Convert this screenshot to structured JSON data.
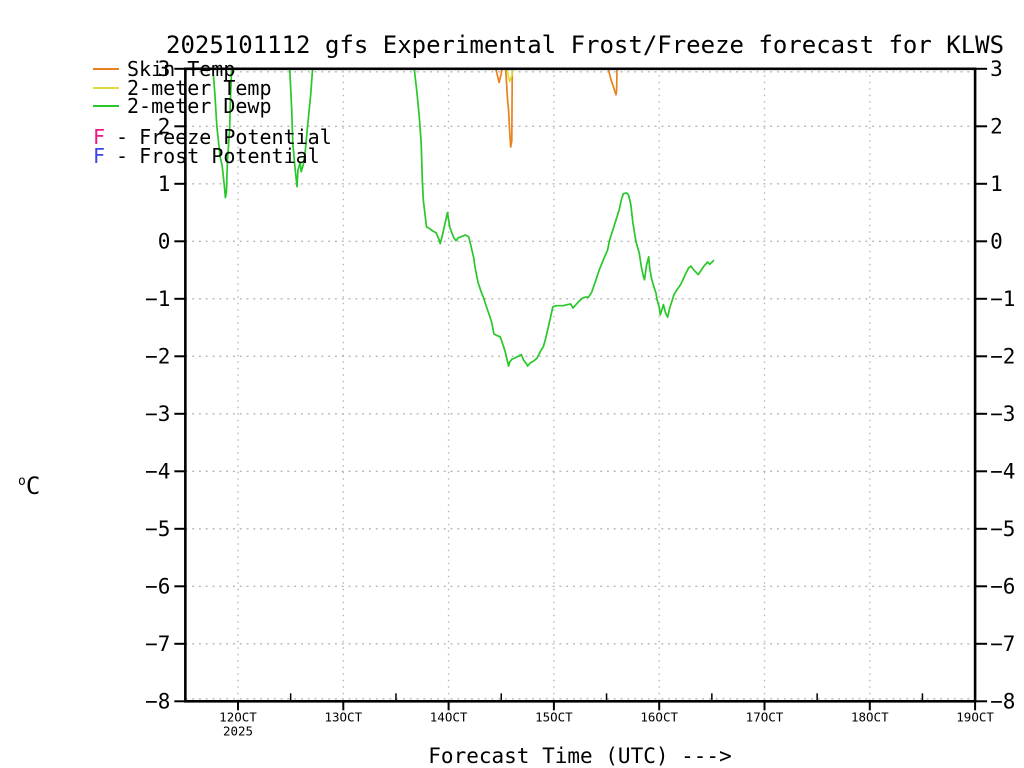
{
  "chart_data": {
    "type": "line",
    "title": "2025101112 gfs Experimental Frost/Freeze forecast for KLWS",
    "xlabel": "Forecast Time (UTC) --->",
    "ylabel": {
      "sup": "o",
      "main": "C"
    },
    "x_axis": {
      "unit": "day_of_october_2025_utc",
      "min_day": 11.5,
      "max_day": 19.0,
      "tick_days": [
        12,
        13,
        14,
        15,
        16,
        17,
        18,
        19
      ],
      "tick_labels": [
        "12OCT",
        "13OCT",
        "14OCT",
        "15OCT",
        "16OCT",
        "17OCT",
        "18OCT",
        "19OCT"
      ],
      "year_label": "2025",
      "minor_tick_days": [
        12.5,
        13.5,
        14.5,
        15.5,
        16.5,
        17.5,
        18.5
      ]
    },
    "y_axis": {
      "unit": "degC",
      "min": -8,
      "max": 3,
      "tick_values": [
        3,
        2,
        1,
        0,
        -1,
        -2,
        -3,
        -4,
        -5,
        -6,
        -7,
        -8
      ],
      "tick_labels": [
        "3",
        "2",
        "1",
        "0",
        "−1",
        "−2",
        "−3",
        "−4",
        "−5",
        "−6",
        "−7",
        "−8"
      ]
    },
    "grid": {
      "show": true,
      "color": "#b8b8b8"
    },
    "legend_position": "top-left",
    "series": [
      {
        "name": "Skin Temp",
        "color": "#E8821E",
        "segments": [
          [
            [
              14.44,
              3.05
            ],
            [
              14.46,
              2.92
            ],
            [
              14.48,
              2.76
            ],
            [
              14.5,
              2.92
            ],
            [
              14.51,
              3.05
            ]
          ],
          [
            [
              14.54,
              3.05
            ],
            [
              14.56,
              2.45
            ],
            [
              14.57,
              2.28
            ],
            [
              14.58,
              1.9
            ],
            [
              14.59,
              1.64
            ],
            [
              14.6,
              1.75
            ],
            [
              14.605,
              3.05
            ]
          ],
          [
            [
              15.51,
              3.05
            ],
            [
              15.54,
              2.82
            ],
            [
              15.57,
              2.66
            ],
            [
              15.59,
              2.55
            ],
            [
              15.595,
              2.62
            ],
            [
              15.6,
              3.05
            ]
          ]
        ]
      },
      {
        "name": "2-meter Temp",
        "color": "#DCDC3C",
        "segments": [
          [
            [
              14.55,
              3.05
            ],
            [
              14.57,
              2.85
            ],
            [
              14.58,
              2.78
            ],
            [
              14.6,
              2.88
            ],
            [
              14.61,
              3.05
            ]
          ]
        ]
      },
      {
        "name": "2-meter Dewp",
        "color": "#28C828",
        "segments": [
          [
            [
              11.76,
              3.05
            ],
            [
              11.78,
              2.58
            ],
            [
              11.8,
              1.99
            ],
            [
              11.83,
              1.47
            ],
            [
              11.85,
              1.31
            ],
            [
              11.87,
              0.97
            ],
            [
              11.88,
              0.76
            ],
            [
              11.89,
              0.86
            ],
            [
              11.9,
              1.42
            ],
            [
              11.92,
              1.94
            ],
            [
              11.93,
              2.55
            ],
            [
              11.94,
              3.05
            ]
          ],
          [
            [
              12.49,
              3.05
            ],
            [
              12.51,
              2.29
            ],
            [
              12.52,
              1.71
            ],
            [
              12.54,
              1.3
            ],
            [
              12.56,
              0.95
            ],
            [
              12.57,
              1.24
            ],
            [
              12.59,
              1.37
            ],
            [
              12.6,
              1.21
            ],
            [
              12.62,
              1.33
            ],
            [
              12.64,
              1.59
            ],
            [
              12.66,
              1.99
            ],
            [
              12.69,
              2.55
            ],
            [
              12.71,
              3.05
            ]
          ],
          [
            [
              13.67,
              3.05
            ],
            [
              13.7,
              2.58
            ],
            [
              13.72,
              2.2
            ],
            [
              13.74,
              1.71
            ],
            [
              13.75,
              1.07
            ],
            [
              13.76,
              0.72
            ],
            [
              13.78,
              0.41
            ],
            [
              13.79,
              0.25
            ],
            [
              13.82,
              0.22
            ],
            [
              13.85,
              0.18
            ],
            [
              13.88,
              0.15
            ],
            [
              13.91,
              0.03
            ],
            [
              13.92,
              -0.04
            ],
            [
              13.94,
              0.1
            ],
            [
              13.97,
              0.34
            ],
            [
              13.99,
              0.5
            ],
            [
              14.01,
              0.25
            ],
            [
              14.03,
              0.15
            ],
            [
              14.05,
              0.06
            ],
            [
              14.07,
              0.01
            ],
            [
              14.09,
              0.06
            ],
            [
              14.12,
              0.08
            ],
            [
              14.16,
              0.11
            ],
            [
              14.19,
              0.08
            ],
            [
              14.21,
              -0.06
            ],
            [
              14.24,
              -0.3
            ],
            [
              14.25,
              -0.44
            ],
            [
              14.28,
              -0.72
            ],
            [
              14.31,
              -0.88
            ],
            [
              14.33,
              -0.97
            ],
            [
              14.36,
              -1.14
            ],
            [
              14.39,
              -1.3
            ],
            [
              14.41,
              -1.42
            ],
            [
              14.43,
              -1.61
            ],
            [
              14.46,
              -1.64
            ],
            [
              14.49,
              -1.66
            ],
            [
              14.52,
              -1.82
            ],
            [
              14.54,
              -1.94
            ],
            [
              14.57,
              -2.17
            ],
            [
              14.58,
              -2.1
            ],
            [
              14.6,
              -2.05
            ],
            [
              14.63,
              -2.03
            ],
            [
              14.66,
              -2.0
            ],
            [
              14.69,
              -1.97
            ],
            [
              14.71,
              -2.06
            ],
            [
              14.74,
              -2.13
            ],
            [
              14.75,
              -2.17
            ],
            [
              14.78,
              -2.11
            ],
            [
              14.81,
              -2.08
            ],
            [
              14.84,
              -2.03
            ],
            [
              14.87,
              -1.92
            ],
            [
              14.9,
              -1.83
            ],
            [
              14.92,
              -1.7
            ],
            [
              14.95,
              -1.47
            ],
            [
              14.97,
              -1.31
            ],
            [
              14.99,
              -1.14
            ],
            [
              15.02,
              -1.12
            ],
            [
              15.06,
              -1.12
            ],
            [
              15.09,
              -1.12
            ],
            [
              15.13,
              -1.1
            ],
            [
              15.16,
              -1.09
            ],
            [
              15.18,
              -1.16
            ],
            [
              15.21,
              -1.1
            ],
            [
              15.24,
              -1.04
            ],
            [
              15.27,
              -0.99
            ],
            [
              15.3,
              -0.97
            ],
            [
              15.33,
              -0.97
            ],
            [
              15.36,
              -0.88
            ],
            [
              15.4,
              -0.67
            ],
            [
              15.43,
              -0.5
            ],
            [
              15.47,
              -0.32
            ],
            [
              15.51,
              -0.15
            ],
            [
              15.53,
              0.03
            ],
            [
              15.56,
              0.2
            ],
            [
              15.59,
              0.37
            ],
            [
              15.62,
              0.55
            ],
            [
              15.64,
              0.72
            ],
            [
              15.66,
              0.83
            ],
            [
              15.69,
              0.84
            ],
            [
              15.71,
              0.8
            ],
            [
              15.73,
              0.64
            ],
            [
              15.75,
              0.32
            ],
            [
              15.78,
              -0.01
            ],
            [
              15.81,
              -0.2
            ],
            [
              15.83,
              -0.44
            ],
            [
              15.85,
              -0.61
            ],
            [
              15.86,
              -0.67
            ],
            [
              15.88,
              -0.41
            ],
            [
              15.9,
              -0.27
            ],
            [
              15.91,
              -0.47
            ],
            [
              15.93,
              -0.67
            ],
            [
              15.95,
              -0.79
            ],
            [
              15.97,
              -0.9
            ],
            [
              15.98,
              -1.02
            ],
            [
              16.0,
              -1.14
            ],
            [
              16.01,
              -1.28
            ],
            [
              16.03,
              -1.16
            ],
            [
              16.04,
              -1.1
            ],
            [
              16.06,
              -1.24
            ],
            [
              16.08,
              -1.32
            ],
            [
              16.1,
              -1.16
            ],
            [
              16.12,
              -1.05
            ],
            [
              16.14,
              -0.93
            ],
            [
              16.17,
              -0.84
            ],
            [
              16.2,
              -0.76
            ],
            [
              16.22,
              -0.69
            ],
            [
              16.25,
              -0.57
            ],
            [
              16.28,
              -0.46
            ],
            [
              16.3,
              -0.43
            ],
            [
              16.33,
              -0.5
            ],
            [
              16.37,
              -0.58
            ],
            [
              16.4,
              -0.5
            ],
            [
              16.43,
              -0.42
            ],
            [
              16.46,
              -0.36
            ],
            [
              16.48,
              -0.4
            ],
            [
              16.52,
              -0.33
            ]
          ]
        ]
      }
    ],
    "potential_markers": [
      {
        "marker": "F",
        "separator": "-",
        "label": "Freeze Potential",
        "color": "#F01882"
      },
      {
        "marker": "F",
        "separator": "-",
        "label": "Frost Potential",
        "color": "#3C46E8"
      }
    ]
  },
  "colors": {
    "axis": "#000000",
    "grid": "#b8b8b8",
    "background": "#ffffff",
    "text": "#000000"
  }
}
